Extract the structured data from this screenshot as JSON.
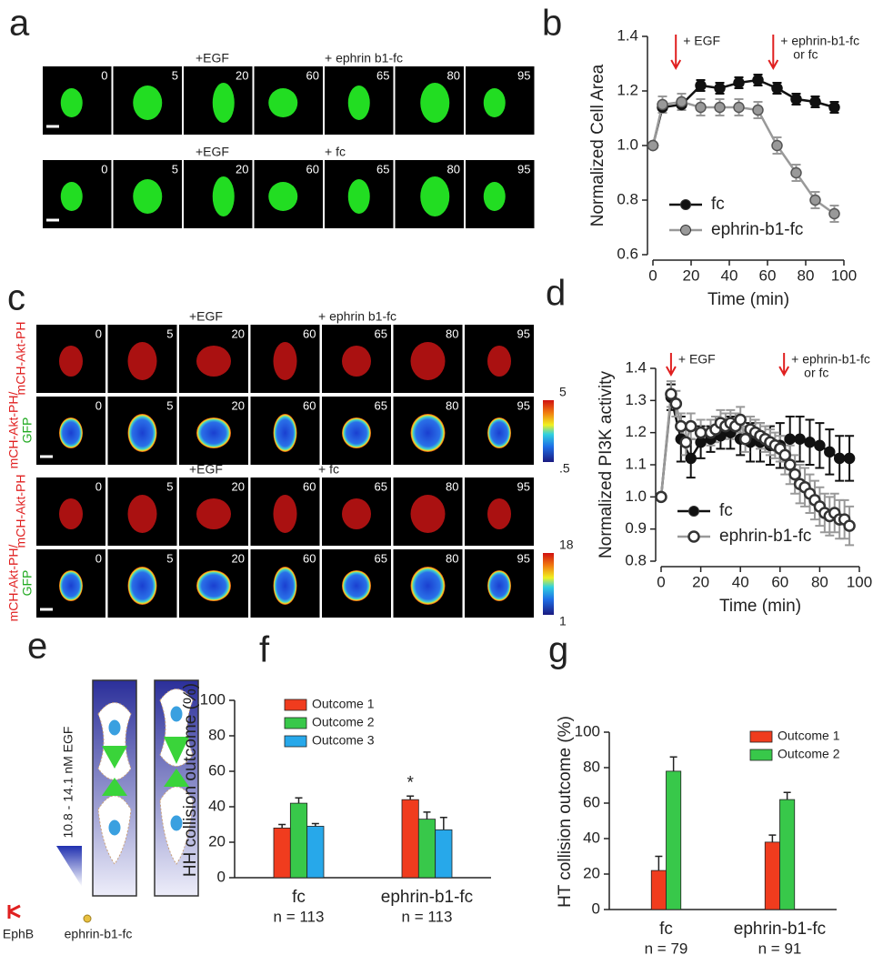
{
  "panel_labels": [
    "a",
    "b",
    "c",
    "d",
    "e",
    "f",
    "g"
  ],
  "panel_a": {
    "times": [
      0,
      5,
      20,
      60,
      65,
      80,
      95
    ],
    "rows": [
      {
        "annotations": [
          "+EGF",
          "+ ephrin b1-fc"
        ]
      },
      {
        "annotations": [
          "+EGF",
          "+ fc"
        ]
      }
    ]
  },
  "panel_c": {
    "times": [
      0,
      5,
      20,
      60,
      65,
      80,
      95
    ],
    "row_labels": {
      "red": "mCH-Akt-PH",
      "ratio": [
        "mCH-Akt-PH/",
        "GFP"
      ]
    },
    "blocks": [
      {
        "annotations": [
          "+EGF",
          "+ ephrin b1-fc"
        ],
        "colorbar": {
          "max": 5,
          "min": {
            "value": 0.5,
            "label": ".5"
          }
        }
      },
      {
        "annotations": [
          "+EGF",
          "+ fc"
        ],
        "colorbar": {
          "max": 18,
          "min": 1
        }
      }
    ]
  },
  "panel_e": {
    "gradient_label": "10.8 - 14.1 nM EGF",
    "legend": [
      "EphB",
      "ephrin-b1-fc"
    ]
  },
  "chart_data": [
    {
      "type": "line",
      "xlabel": "Time (min)",
      "ylabel": "Normalized Cell Area",
      "xlim": [
        0,
        100
      ],
      "xticks": [
        0,
        20,
        40,
        60,
        80,
        100
      ],
      "ylim": [
        0.6,
        1.4
      ],
      "yticks": [
        0.6,
        0.8,
        {
          "value": 1,
          "label": "1.0"
        },
        1.2,
        1.4
      ],
      "legend": "lower left",
      "annotations": [
        {
          "text": [
            "+ EGF"
          ],
          "x": 12
        },
        {
          "text": [
            "+ ephrin-b1-fc",
            "or fc"
          ],
          "x": 63
        }
      ],
      "series": [
        {
          "name": "fc",
          "color": "#111111",
          "marker": "filled",
          "x": [
            0,
            5,
            15,
            25,
            35,
            45,
            55,
            65,
            75,
            85,
            95
          ],
          "values": [
            1.0,
            1.14,
            1.15,
            1.22,
            1.21,
            1.23,
            1.24,
            1.21,
            1.17,
            1.16,
            1.14
          ],
          "errors": [
            0,
            0.02,
            0.02,
            0.02,
            0.02,
            0.02,
            0.02,
            0.02,
            0.02,
            0.02,
            0.02
          ]
        },
        {
          "name": "ephrin-b1-fc",
          "color": "#999999",
          "marker": "filled",
          "x": [
            0,
            5,
            15,
            25,
            35,
            45,
            55,
            65,
            75,
            85,
            95
          ],
          "values": [
            1.0,
            1.15,
            1.16,
            1.14,
            1.14,
            1.14,
            1.13,
            1.0,
            0.9,
            0.8,
            0.75
          ],
          "errors": [
            0,
            0.03,
            0.03,
            0.03,
            0.03,
            0.03,
            0.03,
            0.03,
            0.03,
            0.03,
            0.03
          ]
        }
      ]
    },
    {
      "type": "line",
      "xlabel": "Time (min)",
      "ylabel": "Normalized PI3K activity",
      "xlim": [
        0,
        100
      ],
      "xticks": [
        0,
        20,
        40,
        60,
        80,
        100
      ],
      "ylim": [
        0.8,
        1.4
      ],
      "yticks": [
        0.8,
        0.9,
        {
          "value": 1,
          "label": "1.0"
        },
        1.1,
        1.2,
        1.3,
        1.4
      ],
      "legend": "lower left",
      "annotations": [
        {
          "text": [
            "+ EGF"
          ],
          "x": 5
        },
        {
          "text": [
            "+ ephrin-b1-fc",
            "or fc"
          ],
          "x": 62
        }
      ],
      "series": [
        {
          "name": "fc",
          "color": "#111111",
          "marker": "filled",
          "x": [
            0,
            5,
            10,
            15,
            20,
            25,
            30,
            35,
            40,
            45,
            50,
            55,
            60,
            65,
            70,
            75,
            80,
            85,
            90,
            95
          ],
          "values": [
            1.0,
            1.31,
            1.18,
            1.12,
            1.17,
            1.18,
            1.19,
            1.2,
            1.18,
            1.17,
            1.17,
            1.16,
            1.16,
            1.18,
            1.18,
            1.17,
            1.16,
            1.14,
            1.12,
            1.12
          ],
          "errors": [
            0,
            0.04,
            0.07,
            0.06,
            0.05,
            0.04,
            0.04,
            0.05,
            0.05,
            0.06,
            0.06,
            0.06,
            0.07,
            0.07,
            0.07,
            0.07,
            0.07,
            0.07,
            0.07,
            0.07
          ]
        },
        {
          "name": "ephrin-b1-fc",
          "color": "#999999",
          "marker": "open",
          "x": [
            0,
            5,
            7.5,
            10,
            12.5,
            15,
            20,
            25,
            27.5,
            30,
            32.5,
            35,
            37.5,
            40,
            42.5,
            45,
            47.5,
            50,
            52.5,
            55,
            57.5,
            60,
            62.5,
            65,
            67.5,
            70,
            72.5,
            75,
            77.5,
            80,
            82.5,
            85,
            87.5,
            90,
            92.5,
            95
          ],
          "values": [
            1.0,
            1.32,
            1.29,
            1.22,
            1.17,
            1.22,
            1.2,
            1.2,
            1.21,
            1.23,
            1.22,
            1.23,
            1.22,
            1.24,
            1.18,
            1.21,
            1.2,
            1.19,
            1.18,
            1.17,
            1.16,
            1.15,
            1.13,
            1.1,
            1.07,
            1.04,
            1.03,
            1.01,
            0.99,
            0.97,
            0.95,
            0.94,
            0.95,
            0.93,
            0.93,
            0.91
          ],
          "errors": [
            0,
            0.04,
            0.04,
            0.04,
            0.04,
            0.04,
            0.04,
            0.04,
            0.04,
            0.04,
            0.04,
            0.04,
            0.04,
            0.04,
            0.04,
            0.04,
            0.04,
            0.04,
            0.04,
            0.04,
            0.04,
            0.04,
            0.06,
            0.06,
            0.06,
            0.06,
            0.06,
            0.06,
            0.06,
            0.06,
            0.06,
            0.06,
            0.06,
            0.06,
            0.06,
            0.06
          ]
        }
      ]
    },
    {
      "type": "bar",
      "ylabel": "HH collision outcome (%)",
      "categories": [
        "fc",
        "ephrin-b1-fc"
      ],
      "n_labels": [
        "n = 113",
        "n = 113"
      ],
      "ylim": [
        0,
        100
      ],
      "yticks": [
        0,
        20,
        40,
        60,
        80,
        100
      ],
      "legend": "upper left",
      "annotations": [
        {
          "text": "*",
          "series": 0,
          "category": 1
        }
      ],
      "series": [
        {
          "name": "Outcome 1",
          "color": "#f03c1e",
          "values": [
            28,
            44
          ],
          "errors": [
            2,
            2
          ]
        },
        {
          "name": "Outcome 2",
          "color": "#38c84a",
          "values": [
            42,
            33
          ],
          "errors": [
            3,
            4
          ]
        },
        {
          "name": "Outcome 3",
          "color": "#27a8ea",
          "values": [
            29,
            27
          ],
          "errors": [
            1.5,
            7
          ]
        }
      ]
    },
    {
      "type": "bar",
      "ylabel": "HT collision outcome (%)",
      "categories": [
        "fc",
        "ephrin-b1-fc"
      ],
      "n_labels": [
        "n = 79",
        "n = 91"
      ],
      "ylim": [
        0,
        100
      ],
      "yticks": [
        0,
        20,
        40,
        60,
        80,
        100
      ],
      "legend": "upper right",
      "series": [
        {
          "name": "Outcome 1",
          "color": "#f03c1e",
          "values": [
            22,
            38
          ],
          "errors": [
            8,
            4
          ]
        },
        {
          "name": "Outcome 2",
          "color": "#38c84a",
          "values": [
            78,
            62
          ],
          "errors": [
            8,
            4
          ]
        }
      ]
    }
  ]
}
